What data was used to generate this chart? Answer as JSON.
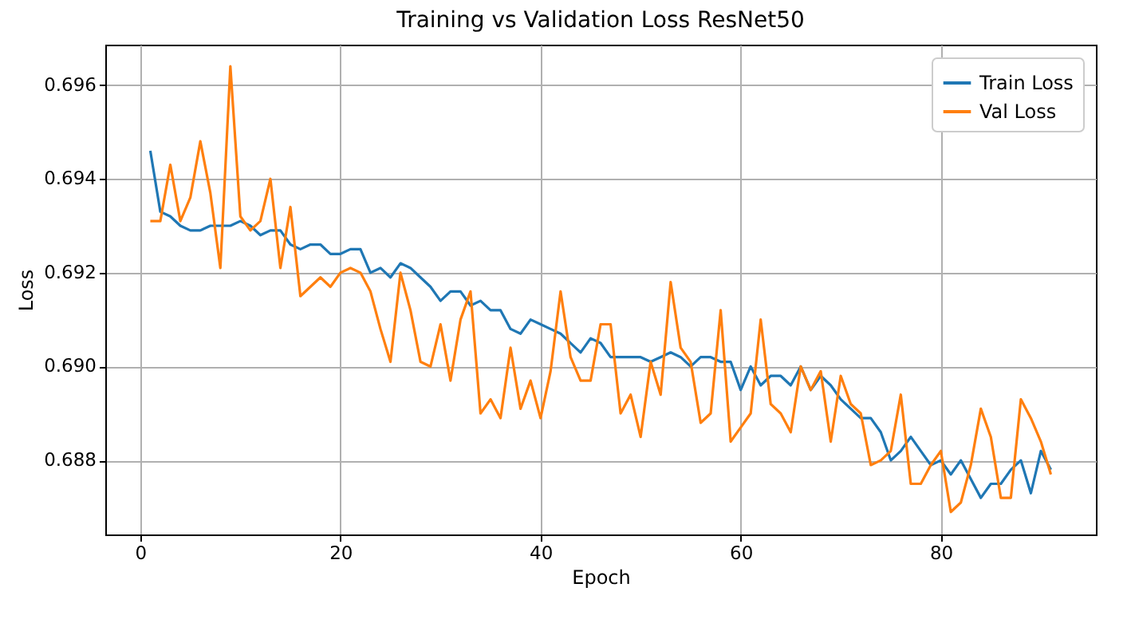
{
  "chart_data": {
    "type": "line",
    "title": "Training vs Validation Loss ResNet50",
    "xlabel": "Epoch",
    "ylabel": "Loss",
    "x": [
      1,
      2,
      3,
      4,
      5,
      6,
      7,
      8,
      9,
      10,
      11,
      12,
      13,
      14,
      15,
      16,
      17,
      18,
      19,
      20,
      21,
      22,
      23,
      24,
      25,
      26,
      27,
      28,
      29,
      30,
      31,
      32,
      33,
      34,
      35,
      36,
      37,
      38,
      39,
      40,
      41,
      42,
      43,
      44,
      45,
      46,
      47,
      48,
      49,
      50,
      51,
      52,
      53,
      54,
      55,
      56,
      57,
      58,
      59,
      60,
      61,
      62,
      63,
      64,
      65,
      66,
      67,
      68,
      69,
      70,
      71,
      72,
      73,
      74,
      75,
      76,
      77,
      78,
      79,
      80,
      81,
      82,
      83,
      84,
      85,
      86,
      87,
      88,
      89,
      90,
      91
    ],
    "series": [
      {
        "name": "Train Loss",
        "color": "#1f77b4",
        "values": [
          0.6946,
          0.6933,
          0.6932,
          0.693,
          0.6929,
          0.6929,
          0.693,
          0.693,
          0.693,
          0.6931,
          0.693,
          0.6928,
          0.6929,
          0.6929,
          0.6926,
          0.6925,
          0.6926,
          0.6926,
          0.6924,
          0.6924,
          0.6925,
          0.6925,
          0.692,
          0.6921,
          0.6919,
          0.6922,
          0.6921,
          0.6919,
          0.6917,
          0.6914,
          0.6916,
          0.6916,
          0.6913,
          0.6914,
          0.6912,
          0.6912,
          0.6908,
          0.6907,
          0.691,
          0.6909,
          0.6908,
          0.6907,
          0.6905,
          0.6903,
          0.6906,
          0.6905,
          0.6902,
          0.6902,
          0.6902,
          0.6902,
          0.6901,
          0.6902,
          0.6903,
          0.6902,
          0.69,
          0.6902,
          0.6902,
          0.6901,
          0.6901,
          0.6895,
          0.69,
          0.6896,
          0.6898,
          0.6898,
          0.6896,
          0.69,
          0.6895,
          0.6898,
          0.6896,
          0.6893,
          0.6891,
          0.6889,
          0.6889,
          0.6886,
          0.688,
          0.6882,
          0.6885,
          0.6882,
          0.6879,
          0.688,
          0.6877,
          0.688,
          0.6876,
          0.6872,
          0.6875,
          0.6875,
          0.6878,
          0.688,
          0.6873,
          0.6882,
          0.6878
        ]
      },
      {
        "name": "Val Loss",
        "color": "#ff7f0e",
        "values": [
          0.6931,
          0.6931,
          0.6943,
          0.6931,
          0.6936,
          0.6948,
          0.6937,
          0.6921,
          0.6964,
          0.6932,
          0.6929,
          0.6931,
          0.694,
          0.6921,
          0.6934,
          0.6915,
          0.6917,
          0.6919,
          0.6917,
          0.692,
          0.6921,
          0.692,
          0.6916,
          0.6908,
          0.6901,
          0.692,
          0.6912,
          0.6901,
          0.69,
          0.6909,
          0.6897,
          0.691,
          0.6916,
          0.689,
          0.6893,
          0.6889,
          0.6904,
          0.6891,
          0.6897,
          0.6889,
          0.6899,
          0.6916,
          0.6902,
          0.6897,
          0.6897,
          0.6909,
          0.6909,
          0.689,
          0.6894,
          0.6885,
          0.6901,
          0.6894,
          0.6918,
          0.6904,
          0.6901,
          0.6888,
          0.689,
          0.6912,
          0.6884,
          0.6887,
          0.689,
          0.691,
          0.6892,
          0.689,
          0.6886,
          0.69,
          0.6895,
          0.6899,
          0.6884,
          0.6898,
          0.6892,
          0.689,
          0.6879,
          0.688,
          0.6882,
          0.6894,
          0.6875,
          0.6875,
          0.6879,
          0.6882,
          0.6869,
          0.6871,
          0.6879,
          0.6891,
          0.6885,
          0.6872,
          0.6872,
          0.6893,
          0.6889,
          0.6884,
          0.6877
        ]
      }
    ],
    "xlim": [
      -3.5,
      95.5
    ],
    "ylim": [
      0.68642,
      0.69686
    ],
    "xticks": [
      0,
      20,
      40,
      60,
      80
    ],
    "yticks": [
      {
        "value": 0.688,
        "label": "0.688"
      },
      {
        "value": 0.69,
        "label": "0.690"
      },
      {
        "value": 0.692,
        "label": "0.692"
      },
      {
        "value": 0.694,
        "label": "0.694"
      },
      {
        "value": 0.696,
        "label": "0.696"
      }
    ],
    "grid": true,
    "legend": "top right",
    "marker": "none",
    "line_style": "solid"
  }
}
